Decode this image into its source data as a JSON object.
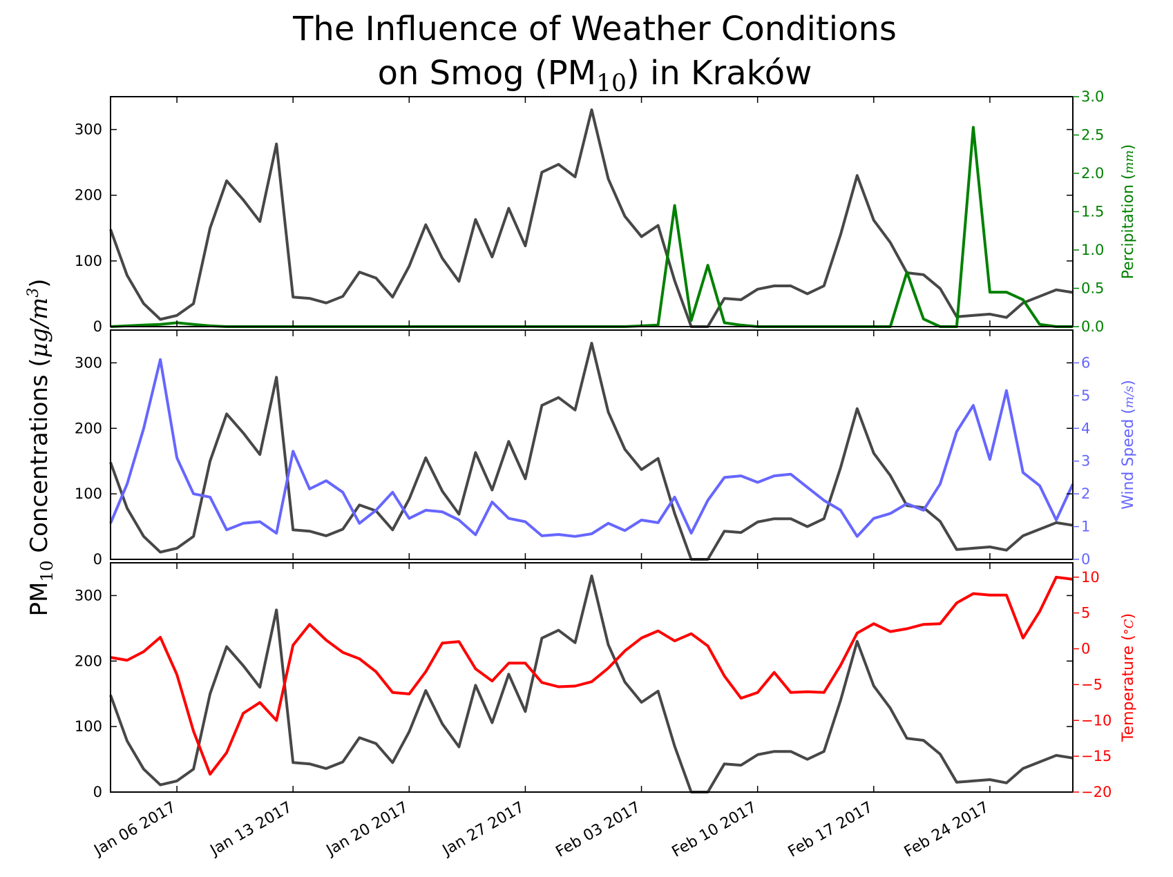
{
  "chart_data": {
    "type": "line",
    "title": {
      "line1": "The Influence of Weather Conditions",
      "line2_pre": "on Smog (PM",
      "line2_sub": "10",
      "line2_post": ") in Kraków"
    },
    "ylabel": {
      "pre": "PM",
      "sub": "10",
      "mid": " Concentrations (",
      "unit_main": "μg/m",
      "unit_sup": "3",
      "post": ")"
    },
    "x": [
      "2017-01-02",
      "2017-01-03",
      "2017-01-04",
      "2017-01-05",
      "2017-01-06",
      "2017-01-07",
      "2017-01-08",
      "2017-01-09",
      "2017-01-10",
      "2017-01-11",
      "2017-01-12",
      "2017-01-13",
      "2017-01-14",
      "2017-01-15",
      "2017-01-16",
      "2017-01-17",
      "2017-01-18",
      "2017-01-19",
      "2017-01-20",
      "2017-01-21",
      "2017-01-22",
      "2017-01-23",
      "2017-01-24",
      "2017-01-25",
      "2017-01-26",
      "2017-01-27",
      "2017-01-28",
      "2017-01-29",
      "2017-01-30",
      "2017-01-31",
      "2017-02-01",
      "2017-02-02",
      "2017-02-03",
      "2017-02-04",
      "2017-02-05",
      "2017-02-06",
      "2017-02-07",
      "2017-02-08",
      "2017-02-09",
      "2017-02-10",
      "2017-02-11",
      "2017-02-12",
      "2017-02-13",
      "2017-02-14",
      "2017-02-15",
      "2017-02-16",
      "2017-02-17",
      "2017-02-18",
      "2017-02-19",
      "2017-02-20",
      "2017-02-21",
      "2017-02-22",
      "2017-02-23",
      "2017-02-24",
      "2017-02-25",
      "2017-02-26",
      "2017-02-27",
      "2017-02-28",
      "2017-03-01"
    ],
    "x_ticks": [
      "Jan 06 2017",
      "Jan 13 2017",
      "Jan 20 2017",
      "Jan 27 2017",
      "Feb 03 2017",
      "Feb 10 2017",
      "Feb 17 2017",
      "Feb 24 2017"
    ],
    "x_tick_dates": [
      "2017-01-06",
      "2017-01-13",
      "2017-01-20",
      "2017-01-27",
      "2017-02-03",
      "2017-02-10",
      "2017-02-17",
      "2017-02-24"
    ],
    "pm10": {
      "color": "#474747",
      "ylim": [
        0,
        350
      ],
      "yticks": [
        "0",
        "100",
        "200",
        "300"
      ],
      "values": [
        148,
        78,
        35,
        11,
        17,
        35,
        150,
        222,
        193,
        160,
        278,
        45,
        43,
        36,
        46,
        83,
        74,
        45,
        92,
        155,
        104,
        69,
        163,
        106,
        180,
        123,
        235,
        247,
        228,
        330,
        225,
        168,
        137,
        154,
        70,
        0,
        0,
        43,
        41,
        57,
        62,
        62,
        50,
        62,
        140,
        230,
        162,
        128,
        82,
        79,
        58,
        15,
        17,
        19,
        14,
        36,
        46,
        56,
        52
      ]
    },
    "panels": [
      {
        "name": "precipitation",
        "label_pre": "Percipitation (",
        "label_unit": "mm",
        "label_post": ")",
        "color": "#008000",
        "ylim": [
          0,
          3.0
        ],
        "yticks": [
          "0.0",
          "0.5",
          "1.0",
          "1.5",
          "2.0",
          "2.5",
          "3.0"
        ],
        "values": [
          0,
          0.01,
          0.02,
          0.03,
          0.05,
          0.03,
          0.01,
          0,
          0,
          0,
          0,
          0,
          0,
          0,
          0,
          0,
          0,
          0,
          0,
          0,
          0,
          0,
          0,
          0,
          0,
          0,
          0,
          0,
          0,
          0,
          0,
          0,
          0.01,
          0.02,
          1.58,
          0.08,
          0.8,
          0.05,
          0.02,
          0,
          0,
          0,
          0,
          0,
          0,
          0,
          0,
          0,
          0.71,
          0.1,
          0,
          0,
          2.6,
          0.45,
          0.45,
          0.35,
          0.03,
          0,
          0
        ]
      },
      {
        "name": "wind",
        "label_pre": "Wind Speed (",
        "label_unit": "m/s",
        "label_post": ")",
        "color": "#6666ff",
        "ylim": [
          0,
          7
        ],
        "yticks": [
          "0",
          "1",
          "2",
          "3",
          "4",
          "5",
          "6"
        ],
        "values": [
          1.1,
          2.3,
          4.0,
          6.1,
          3.1,
          2.0,
          1.9,
          0.9,
          1.1,
          1.15,
          0.8,
          3.3,
          2.15,
          2.4,
          2.05,
          1.1,
          1.5,
          2.05,
          1.25,
          1.5,
          1.45,
          1.2,
          0.75,
          1.75,
          1.25,
          1.15,
          0.72,
          0.76,
          0.7,
          0.78,
          1.1,
          0.88,
          1.2,
          1.12,
          1.9,
          0.8,
          1.8,
          2.5,
          2.55,
          2.35,
          2.55,
          2.6,
          2.2,
          1.8,
          1.5,
          0.7,
          1.25,
          1.4,
          1.7,
          1.5,
          2.3,
          3.9,
          4.7,
          3.05,
          5.15,
          2.65,
          2.25,
          1.2,
          2.3
        ]
      },
      {
        "name": "temperature",
        "label_pre": "Temperature (",
        "label_unit": "°C",
        "label_post": ")",
        "color": "#ff0000",
        "ylim": [
          -20,
          12
        ],
        "yticks": [
          "−20",
          "−15",
          "−10",
          "−5",
          "0",
          "5",
          "10"
        ],
        "values": [
          -1.2,
          -1.6,
          -0.4,
          1.6,
          -3.6,
          -11.5,
          -17.5,
          -14.5,
          -9.0,
          -7.5,
          -10.0,
          0.5,
          3.4,
          1.2,
          -0.5,
          -1.4,
          -3.2,
          -6.1,
          -6.3,
          -3.2,
          0.8,
          1.0,
          -2.8,
          -4.5,
          -2.0,
          -2.0,
          -4.7,
          -5.3,
          -5.2,
          -4.6,
          -2.7,
          -0.3,
          1.5,
          2.5,
          1.1,
          2.1,
          0.4,
          -3.8,
          -6.9,
          -6.1,
          -3.3,
          -6.1,
          -6.0,
          -6.1,
          -2.3,
          2.2,
          3.5,
          2.4,
          2.8,
          3.4,
          3.5,
          6.4,
          7.7,
          7.5,
          7.5,
          1.5,
          5.2,
          10.0,
          9.7
        ]
      }
    ]
  }
}
